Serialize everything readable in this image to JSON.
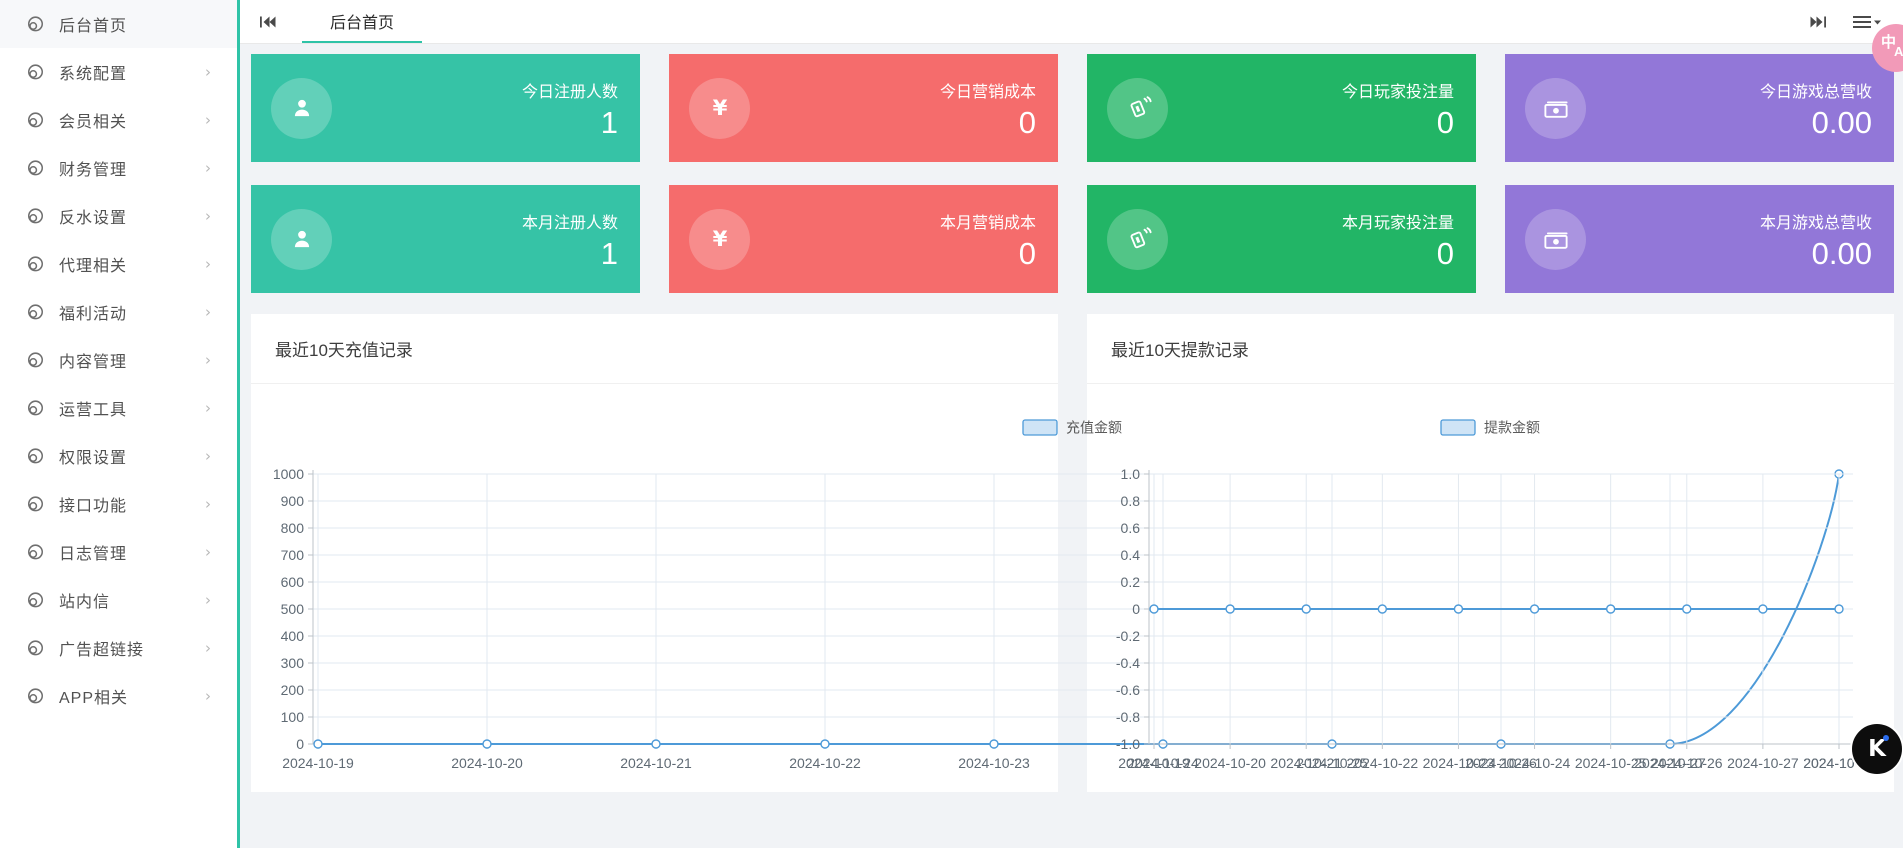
{
  "sidebar": {
    "items": [
      {
        "label": "后台首页",
        "has_children": false
      },
      {
        "label": "系统配置",
        "has_children": true
      },
      {
        "label": "会员相关",
        "has_children": true
      },
      {
        "label": "财务管理",
        "has_children": true
      },
      {
        "label": "反水设置",
        "has_children": true
      },
      {
        "label": "代理相关",
        "has_children": true
      },
      {
        "label": "福利活动",
        "has_children": true
      },
      {
        "label": "内容管理",
        "has_children": true
      },
      {
        "label": "运营工具",
        "has_children": true
      },
      {
        "label": "权限设置",
        "has_children": true
      },
      {
        "label": "接口功能",
        "has_children": true
      },
      {
        "label": "日志管理",
        "has_children": true
      },
      {
        "label": "站内信",
        "has_children": true
      },
      {
        "label": "广告超链接",
        "has_children": true
      },
      {
        "label": "APP相关",
        "has_children": true
      }
    ]
  },
  "tabbar": {
    "active_tab": "后台首页"
  },
  "stat_cards": [
    {
      "label": "今日注册人数",
      "value": "1",
      "color": "#36c3a6",
      "icon": "user-icon"
    },
    {
      "label": "今日营销成本",
      "value": "0",
      "color": "#f56c6c",
      "icon": "yen-icon"
    },
    {
      "label": "今日玩家投注量",
      "value": "0",
      "color": "#22b566",
      "icon": "bet-card-icon"
    },
    {
      "label": "今日游戏总营收",
      "value": "0.00",
      "color": "#9277d8",
      "icon": "banknote-icon"
    },
    {
      "label": "本月注册人数",
      "value": "1",
      "color": "#36c3a6",
      "icon": "user-icon"
    },
    {
      "label": "本月营销成本",
      "value": "0",
      "color": "#f56c6c",
      "icon": "yen-icon"
    },
    {
      "label": "本月玩家投注量",
      "value": "0",
      "color": "#22b566",
      "icon": "bet-card-icon"
    },
    {
      "label": "本月游戏总营收",
      "value": "0.00",
      "color": "#9277d8",
      "icon": "banknote-icon"
    }
  ],
  "chart_data": [
    {
      "type": "line",
      "title": "最近10天充值记录",
      "legend": "充值金额",
      "smooth": true,
      "x": [
        "2024-10-19",
        "2024-10-20",
        "2024-10-21",
        "2024-10-22",
        "2024-10-23",
        "2024-10-24",
        "2024-10-25",
        "2024-10-26",
        "2024-10-27",
        "2024-10-28"
      ],
      "values": [
        0,
        0,
        0,
        0,
        0,
        0,
        0,
        0,
        0,
        1000
      ],
      "ylim": [
        0,
        1000
      ],
      "ytick_labels": [
        "1000",
        "900",
        "800",
        "700",
        "600",
        "500",
        "400",
        "300",
        "200",
        "100",
        "0"
      ],
      "grid": true,
      "legend_position": "top-center",
      "line_color": "#4d9ad8",
      "legend_fill": "#cfe4f6"
    },
    {
      "type": "line",
      "title": "最近10天提款记录",
      "legend": "提款金额",
      "smooth": true,
      "x": [
        "2024-10-19",
        "2024-10-20",
        "2024-10-21",
        "2024-10-22",
        "2024-10-23",
        "2024-10-24",
        "2024-10-25",
        "2024-10-26",
        "2024-10-27",
        "2024-10-28"
      ],
      "values": [
        0,
        0,
        0,
        0,
        0,
        0,
        0,
        0,
        0,
        0
      ],
      "ylim": [
        -1,
        1
      ],
      "ytick_labels": [
        "1.0",
        "0.8",
        "0.6",
        "0.4",
        "0.2",
        "0",
        "-0.2",
        "-0.4",
        "-0.6",
        "-0.8",
        "-1.0"
      ],
      "grid": true,
      "legend_position": "top-center",
      "line_color": "#4d9ad8",
      "legend_fill": "#cfe4f6"
    }
  ],
  "floating": {
    "translate_zh": "中",
    "translate_en": "A",
    "brand_letter": "K"
  },
  "colors": {
    "accent": "#2fc3a7",
    "grid": "#e2e9f0",
    "axis": "#bcc3ca",
    "tick_text": "#5f6a74"
  }
}
